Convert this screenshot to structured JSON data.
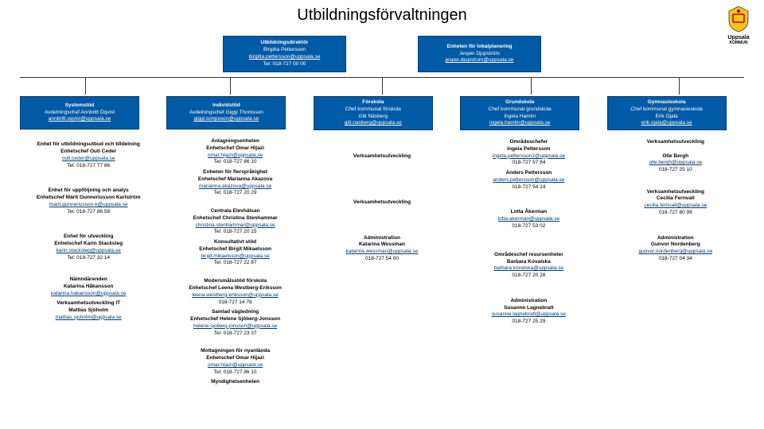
{
  "title": "Utbildningsförvaltningen",
  "logo_text": "Uppsala",
  "logo_sub": "KOMMUN",
  "colors": {
    "box_bg": "#005aa6",
    "box_border": "#003c70",
    "link": "#003c70",
    "text": "#000000",
    "bg": "#ffffff",
    "line": "#333333"
  },
  "top": [
    {
      "t1": "Utbildningsdirektör",
      "t2": "Birgitta Pettersson",
      "email": "birgitta.pettersson@uppsala.se",
      "phone": "Tel: 018-727 00 00"
    },
    {
      "t1": "Enheten för lokalplanering",
      "t2": "Jesper Djupström",
      "email": "jesper.djupstrom@uppsala.se",
      "phone": ""
    }
  ],
  "col_headers": [
    {
      "hd": "Systemstöd",
      "t": "Avdelningschef Annbritt Öqvist",
      "e": "annbritt.oqvist@uppsala.se"
    },
    {
      "hd": "Individstöd",
      "t": "Avdelningschef Giggi Thomsson",
      "e": "giggi.tompsson@uppsala.se"
    },
    {
      "hd": "Förskola",
      "t": "Chef kommunal förskola\nGitt Näsberg",
      "e": "gitt.nasberg@uppsala.se"
    },
    {
      "hd": "Grundskola",
      "t": "Chef kommunal grundskola\nIngela Hamlin",
      "e": "ingela.hamlin@uppsala.se"
    },
    {
      "hd": "Gymnasieskola",
      "t": "Chef kommunal gymnasieskola\nErik Ojala",
      "e": "erik.ojala@uppsala.se"
    }
  ],
  "rows": [
    [
      {
        "t": "Enhet för utbildningsutbud och tilldelning\nEnhetschef Outi Ceder",
        "e": "outi.ceder@uppsala.se",
        "p": "Tel: 018-727 77 86"
      },
      {
        "t": "Antagningsenheten\nEnhetschef Omar Hijazi",
        "e": "omar.hijazi@uppsala.se",
        "p": "Tel: 018-727 86 10",
        "t2": "Enheten för flerspråkighet\nEnhetschef Marianna Akazova",
        "e2": "marianna.akazova@uppsala.se",
        "p2": "Tel: 018-727 20 29"
      },
      {
        "t": "Verksamhetsutveckling"
      },
      {
        "t": "Områdeschefer\nIngela Pettersson",
        "e": "ingela.pettersson2@uppsala.se",
        "p": "018-727 57 84",
        "t2": "Anders Pettersson",
        "e2": "anders.pettersson@uppsala.se",
        "p2": "018-727 54 14"
      },
      {
        "t": "Verksamhetsutveckling\n\nOlle Bergh",
        "e": "olle.bergh@uppsala.se",
        "p": "018-727 25 10"
      }
    ],
    [
      {
        "t": "Enhet för uppföljning och analys\nEnhetschef Márit Gunneriusson Karlström",
        "e": "marit.gunneriusson-k@uppsala.se",
        "p": "Tel: 018-727 86 58"
      },
      {
        "t": "Centrala Elevhälsan\nEnhetschef Christina Stenhammar",
        "e": "christina.stenhammar@uppsala.se",
        "p": "Tel: 018-727 20 15",
        "t2": "Konsultativt stöd\nEnhetschef Birgit Mikaelsson",
        "e2": "birgit.mikaelsson@uppsala.se",
        "p2": "Tel: 018-727 22 87"
      },
      {
        "t": "Verksamhetsutveckling"
      },
      {
        "t": "Lotta Åkerman",
        "e": "lotta.akerman@uppsala.se",
        "p": "018-727 53 02"
      },
      {
        "t": "Verksamhetsutveckling\nCecilia Fernvall",
        "e": "cecilia.fernvall@uppsala.se",
        "p": "018-727 80 99"
      }
    ],
    [
      {
        "t": "Enhet för utveckling\nEnhetschef Karin Stacksteg",
        "e": "karin.stacksteg@uppsala.se",
        "p": "Tel: 018-727 32 14"
      },
      {
        "t": "Modersmålsstöd förskola\nEnhetschef Leena Westberg-Eriksson",
        "e": "leena.westberg-eriksson@uppsala.se",
        "p": "018-727 14 78",
        "t2": "Samlad vägledning\nEnhetschef Helene Sjöberg-Jonsson",
        "e2": "helene.sjoberg-jonsson@uppsala.se",
        "p2": "Tel: 018-727 23 37"
      },
      {
        "t": "Administration\nKatarina Wessman",
        "e": "katarina.wessman@uppsala.se",
        "p": "018-727 54 00"
      },
      {
        "t": "Områdeschef resursenheter\nBarbara Kovalska",
        "e": "barbara.kovalska@uppsala.se",
        "p": "018-727 20 28"
      },
      {
        "t": "Administration\nGunvor Nordenberg",
        "e": "gunvor.nordenberg@uppsala.se",
        "p": "018-727 04 34"
      }
    ],
    [
      {
        "t": "Nämndärenden\nKatarina Håkansson",
        "e": "katarina.hakansson@uppsala.se",
        "t2": "Verksamhetsutveckling IT\nMattias Sjöholm",
        "e2": "mattias.sjoholm@uppsala.se"
      },
      {
        "t": "Mottagningen för nyanlända\nEnhetschef Omar Hijazi",
        "e": "omar.hijazi@uppsala.se",
        "p": "Tel: 018-727 86 10",
        "t2": "Myndighetsenheten"
      },
      {
        "t": ""
      },
      {
        "t": "Administration\nSusanne Lagnebratt",
        "e": "susanne.lagnebratt@uppsala.se",
        "p": "018-727 25 29"
      },
      {
        "t": ""
      }
    ]
  ]
}
